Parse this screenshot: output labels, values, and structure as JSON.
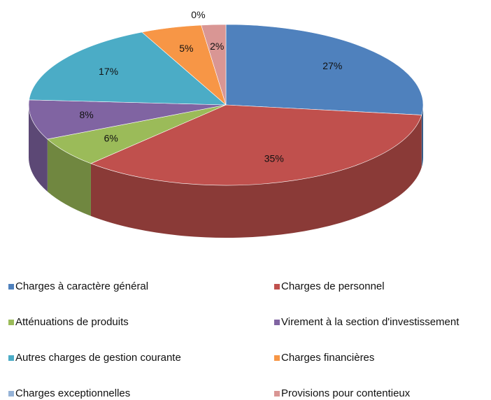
{
  "chart_data": {
    "type": "pie",
    "categories": [
      "Charges à caractère général",
      "Charges de personnel",
      "Atténuations de produits",
      "Virement à la section d'investissement",
      "Autres charges de gestion courante",
      "Charges financières",
      "Charges exceptionnelles",
      "Provisions pour contentieux"
    ],
    "values": [
      27,
      35,
      6,
      8,
      17,
      5,
      0,
      2
    ],
    "value_labels": [
      "27%",
      "35%",
      "6%",
      "8%",
      "17%",
      "5%",
      "0%",
      "2%"
    ],
    "colors": [
      "#4f81bd",
      "#c0504d",
      "#9bbb59",
      "#8064a2",
      "#4bacc6",
      "#f79646",
      "#95b3d7",
      "#d99694"
    ],
    "legend": "bottom"
  }
}
